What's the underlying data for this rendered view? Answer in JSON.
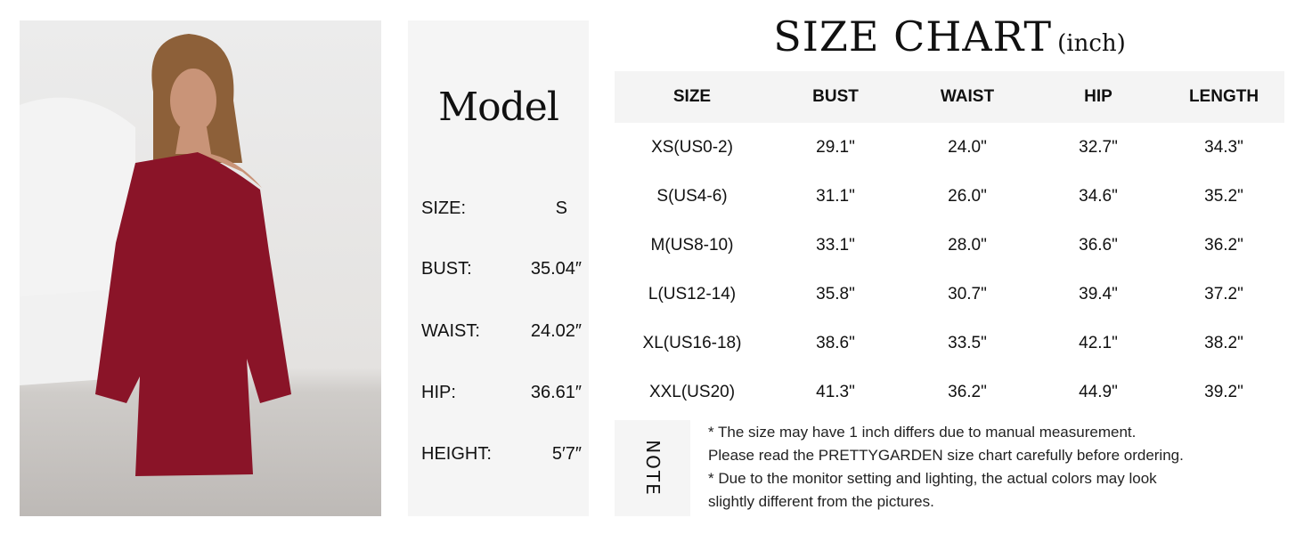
{
  "model": {
    "title": "Model",
    "rows": [
      {
        "label": "SIZE:",
        "value": "S"
      },
      {
        "label": "BUST:",
        "value": "35.04″"
      },
      {
        "label": "WAIST:",
        "value": "24.02″"
      },
      {
        "label": "HIP:",
        "value": "36.61″"
      },
      {
        "label": "HEIGHT:",
        "value": "5′7″"
      }
    ]
  },
  "chart": {
    "title": "SIZE CHART",
    "unit": "(inch)",
    "headers": [
      "SIZE",
      "BUST",
      "WAIST",
      "HIP",
      "LENGTH"
    ],
    "rows": [
      [
        "XS(US0-2)",
        "29.1\"",
        "24.0\"",
        "32.7\"",
        "34.3\""
      ],
      [
        "S(US4-6)",
        "31.1\"",
        "26.0\"",
        "34.6\"",
        "35.2\""
      ],
      [
        "M(US8-10)",
        "33.1\"",
        "28.0\"",
        "36.6\"",
        "36.2\""
      ],
      [
        "L(US12-14)",
        "35.8\"",
        "30.7\"",
        "39.4\"",
        "37.2\""
      ],
      [
        "XL(US16-18)",
        "38.6\"",
        "33.5\"",
        "42.1\"",
        "38.2\""
      ],
      [
        "XXL(US20)",
        "41.3\"",
        "36.2\"",
        "44.9\"",
        "39.2\""
      ]
    ]
  },
  "note": {
    "label": "NOTE",
    "lines": [
      "* The size may have 1 inch differs due to manual measurement.",
      "Please read the PRETTYGARDEN size chart carefully before ordering.",
      "* Due to the monitor setting and lighting, the actual colors may look",
      "slightly different from the pictures."
    ]
  },
  "colors": {
    "dress": "#8a1428",
    "panel": "#f5f5f5"
  }
}
